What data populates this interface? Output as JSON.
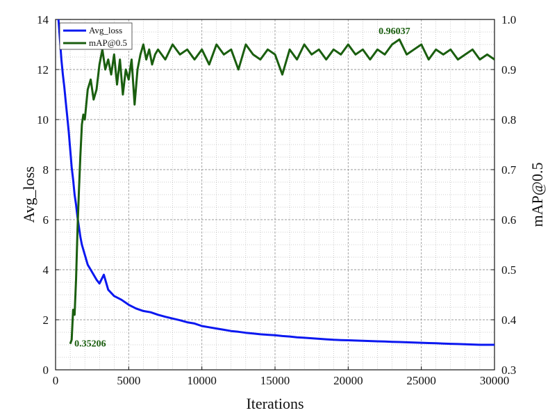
{
  "chart_data": {
    "type": "line",
    "xlabel": "Iterations",
    "ylabel_left": "Avg_loss",
    "ylabel_right": "mAP@0.5",
    "xlim": [
      0,
      30000
    ],
    "ylim_left": [
      0,
      14
    ],
    "ylim_right": [
      0.3,
      1.0
    ],
    "x_ticks": [
      "0",
      "5000",
      "10000",
      "15000",
      "20000",
      "25000",
      "30000"
    ],
    "y_left_ticks": [
      "0",
      "2",
      "4",
      "6",
      "8",
      "10",
      "12",
      "14"
    ],
    "y_right_ticks": [
      "0.3",
      "0.4",
      "0.5",
      "0.6",
      "0.7",
      "0.8",
      "0.9",
      "1.0"
    ],
    "grid": "dotted",
    "legend_position": "top-left",
    "series": [
      {
        "name": "Avg_loss",
        "axis": "left",
        "color": "#0b18f0",
        "points": [
          [
            200,
            14.0
          ],
          [
            300,
            13.2
          ],
          [
            400,
            12.4
          ],
          [
            500,
            11.8
          ],
          [
            600,
            11.3
          ],
          [
            700,
            10.7
          ],
          [
            800,
            10.1
          ],
          [
            900,
            9.5
          ],
          [
            1000,
            8.8
          ],
          [
            1100,
            8.1
          ],
          [
            1200,
            7.6
          ],
          [
            1300,
            7.0
          ],
          [
            1400,
            6.6
          ],
          [
            1500,
            6.1
          ],
          [
            1600,
            5.7
          ],
          [
            1700,
            5.3
          ],
          [
            1800,
            5.0
          ],
          [
            2000,
            4.6
          ],
          [
            2200,
            4.2
          ],
          [
            2500,
            3.9
          ],
          [
            2800,
            3.6
          ],
          [
            3000,
            3.45
          ],
          [
            3300,
            3.8
          ],
          [
            3600,
            3.2
          ],
          [
            4000,
            2.95
          ],
          [
            4500,
            2.8
          ],
          [
            5000,
            2.6
          ],
          [
            5500,
            2.45
          ],
          [
            6000,
            2.35
          ],
          [
            6500,
            2.3
          ],
          [
            7000,
            2.2
          ],
          [
            7500,
            2.12
          ],
          [
            8000,
            2.05
          ],
          [
            8500,
            1.98
          ],
          [
            9000,
            1.9
          ],
          [
            9500,
            1.85
          ],
          [
            10000,
            1.75
          ],
          [
            10500,
            1.7
          ],
          [
            11000,
            1.65
          ],
          [
            11500,
            1.6
          ],
          [
            12000,
            1.55
          ],
          [
            12500,
            1.52
          ],
          [
            13000,
            1.48
          ],
          [
            13500,
            1.45
          ],
          [
            14000,
            1.42
          ],
          [
            14500,
            1.4
          ],
          [
            15000,
            1.38
          ],
          [
            15500,
            1.35
          ],
          [
            16000,
            1.33
          ],
          [
            16500,
            1.3
          ],
          [
            17000,
            1.28
          ],
          [
            17500,
            1.26
          ],
          [
            18000,
            1.24
          ],
          [
            18500,
            1.22
          ],
          [
            19000,
            1.2
          ],
          [
            19500,
            1.19
          ],
          [
            20000,
            1.18
          ],
          [
            20500,
            1.17
          ],
          [
            21000,
            1.16
          ],
          [
            21500,
            1.15
          ],
          [
            22000,
            1.14
          ],
          [
            22500,
            1.13
          ],
          [
            23000,
            1.12
          ],
          [
            23500,
            1.11
          ],
          [
            24000,
            1.1
          ],
          [
            24500,
            1.09
          ],
          [
            25000,
            1.08
          ],
          [
            25500,
            1.07
          ],
          [
            26000,
            1.06
          ],
          [
            26500,
            1.05
          ],
          [
            27000,
            1.04
          ],
          [
            27500,
            1.03
          ],
          [
            28000,
            1.02
          ],
          [
            28500,
            1.01
          ],
          [
            29000,
            1.0
          ],
          [
            29500,
            1.0
          ],
          [
            30000,
            1.0
          ]
        ]
      },
      {
        "name": "mAP@0.5",
        "axis": "right",
        "color": "#1a5e0f",
        "points": [
          [
            1000,
            0.352
          ],
          [
            1100,
            0.36
          ],
          [
            1200,
            0.42
          ],
          [
            1300,
            0.41
          ],
          [
            1400,
            0.48
          ],
          [
            1500,
            0.58
          ],
          [
            1600,
            0.66
          ],
          [
            1700,
            0.73
          ],
          [
            1800,
            0.79
          ],
          [
            1900,
            0.81
          ],
          [
            2000,
            0.8
          ],
          [
            2200,
            0.86
          ],
          [
            2400,
            0.88
          ],
          [
            2600,
            0.84
          ],
          [
            2800,
            0.86
          ],
          [
            3000,
            0.91
          ],
          [
            3200,
            0.94
          ],
          [
            3400,
            0.9
          ],
          [
            3600,
            0.92
          ],
          [
            3800,
            0.89
          ],
          [
            4000,
            0.93
          ],
          [
            4200,
            0.87
          ],
          [
            4400,
            0.92
          ],
          [
            4600,
            0.85
          ],
          [
            4800,
            0.9
          ],
          [
            5000,
            0.88
          ],
          [
            5200,
            0.92
          ],
          [
            5400,
            0.83
          ],
          [
            5600,
            0.9
          ],
          [
            5800,
            0.93
          ],
          [
            6000,
            0.95
          ],
          [
            6200,
            0.92
          ],
          [
            6400,
            0.94
          ],
          [
            6600,
            0.91
          ],
          [
            6800,
            0.93
          ],
          [
            7000,
            0.94
          ],
          [
            7500,
            0.92
          ],
          [
            8000,
            0.95
          ],
          [
            8500,
            0.93
          ],
          [
            9000,
            0.94
          ],
          [
            9500,
            0.92
          ],
          [
            10000,
            0.94
          ],
          [
            10500,
            0.91
          ],
          [
            11000,
            0.95
          ],
          [
            11500,
            0.93
          ],
          [
            12000,
            0.94
          ],
          [
            12500,
            0.9
          ],
          [
            13000,
            0.95
          ],
          [
            13500,
            0.93
          ],
          [
            14000,
            0.92
          ],
          [
            14500,
            0.94
          ],
          [
            15000,
            0.93
          ],
          [
            15500,
            0.89
          ],
          [
            16000,
            0.94
          ],
          [
            16500,
            0.92
          ],
          [
            17000,
            0.95
          ],
          [
            17500,
            0.93
          ],
          [
            18000,
            0.94
          ],
          [
            18500,
            0.92
          ],
          [
            19000,
            0.94
          ],
          [
            19500,
            0.93
          ],
          [
            20000,
            0.95
          ],
          [
            20500,
            0.93
          ],
          [
            21000,
            0.94
          ],
          [
            21500,
            0.92
          ],
          [
            22000,
            0.94
          ],
          [
            22500,
            0.93
          ],
          [
            23000,
            0.95
          ],
          [
            23500,
            0.96
          ],
          [
            24000,
            0.93
          ],
          [
            24500,
            0.94
          ],
          [
            25000,
            0.95
          ],
          [
            25500,
            0.92
          ],
          [
            26000,
            0.94
          ],
          [
            26500,
            0.93
          ],
          [
            27000,
            0.94
          ],
          [
            27500,
            0.92
          ],
          [
            28000,
            0.93
          ],
          [
            28500,
            0.94
          ],
          [
            29000,
            0.92
          ],
          [
            29500,
            0.93
          ],
          [
            30000,
            0.92
          ]
        ]
      }
    ],
    "annotations": [
      {
        "text": "0.35206",
        "x": 1000,
        "y": 0.352,
        "axis": "right",
        "color": "#1a5e0f"
      },
      {
        "text": "0.96037",
        "x": 23500,
        "y": 0.96,
        "axis": "right",
        "color": "#1a5e0f"
      }
    ]
  }
}
